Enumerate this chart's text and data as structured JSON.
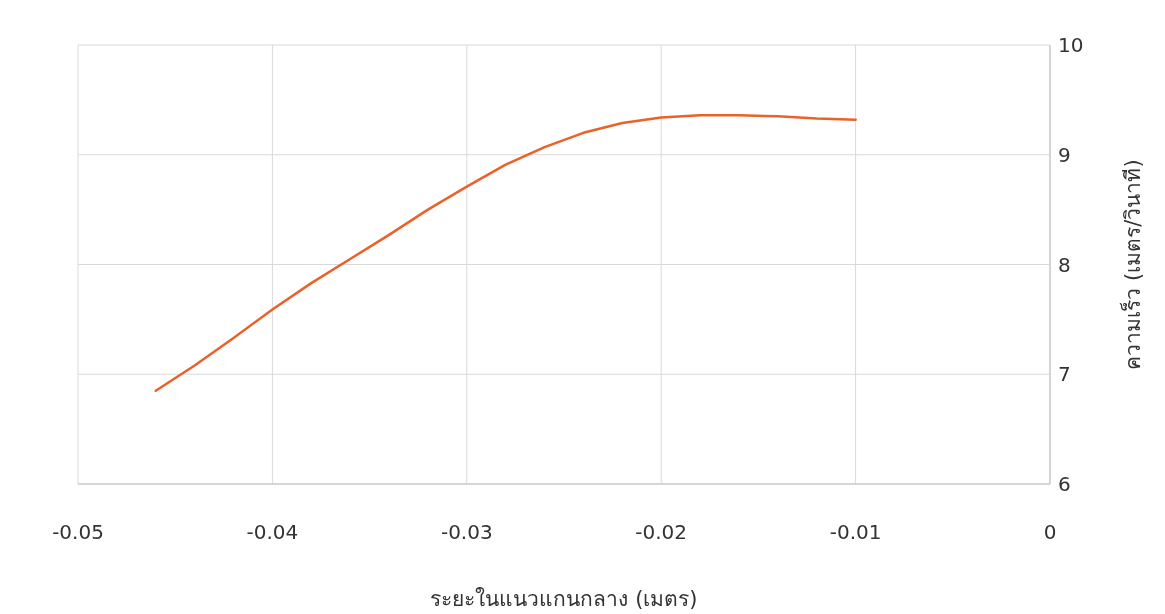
{
  "chart_data": {
    "type": "line",
    "xlabel": "ระยะในแนวแกนกลาง (เมตร)",
    "ylabel": "ความเร็ว (เมตร/วินาที)",
    "x": [
      -0.046,
      -0.044,
      -0.042,
      -0.04,
      -0.038,
      -0.036,
      -0.034,
      -0.032,
      -0.03,
      -0.028,
      -0.026,
      -0.024,
      -0.022,
      -0.02,
      -0.018,
      -0.016,
      -0.014,
      -0.012,
      -0.01
    ],
    "series": [
      {
        "color": "#e8622a",
        "values": [
          6.85,
          7.08,
          7.33,
          7.59,
          7.83,
          8.05,
          8.27,
          8.5,
          8.71,
          8.91,
          9.07,
          9.2,
          9.29,
          9.34,
          9.36,
          9.36,
          9.35,
          9.33,
          9.32
        ]
      }
    ],
    "xlim": [
      -0.05,
      0
    ],
    "xticks": [
      -0.05,
      -0.04,
      -0.03,
      -0.02,
      -0.01,
      0
    ],
    "ylim": [
      6,
      10
    ],
    "yticks": [
      6,
      7,
      8,
      9,
      10
    ],
    "grid": true,
    "marker": "none",
    "line_style": "solid"
  }
}
